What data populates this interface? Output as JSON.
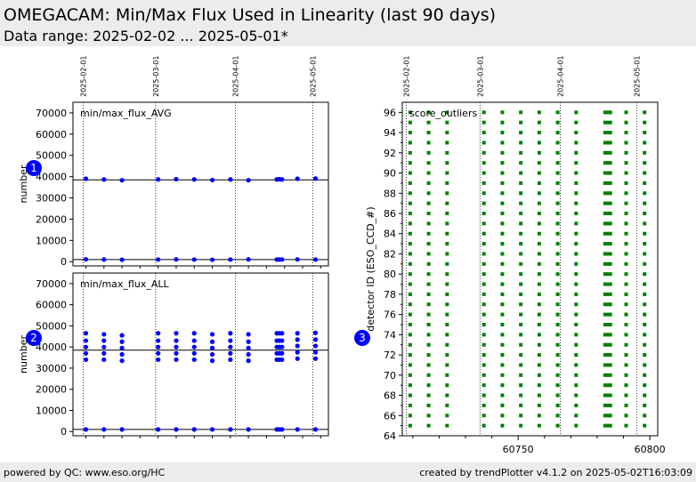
{
  "page": {
    "title": "OMEGACAM: Min/Max Flux Used in Linearity (last 90 days)",
    "subtitle": "Data range: 2025-02-02 ... 2025-05-01*",
    "footer_left": "powered by QC: www.eso.org/HC",
    "footer_right": "created by trendPlotter v4.1.2 on 2025-05-02T16:03:09"
  },
  "colors": {
    "header_bg": "#ececec",
    "data_blue": "#0000ff",
    "data_green": "#008000",
    "badge": "#0000ff"
  },
  "chart_data": [
    {
      "type": "scatter",
      "panel_label": "min/max_flux_AVG",
      "badge": "1",
      "ylabel": "number",
      "ylim": [
        -2000,
        75000
      ],
      "yticks": [
        0,
        10000,
        20000,
        30000,
        40000,
        50000,
        60000,
        70000
      ],
      "ytick_labels": [
        "0",
        "10000",
        "20000",
        "30000",
        "40000",
        "50000",
        "60000",
        "70000"
      ],
      "date_ticks": [
        "2025-02-01",
        "2025-03-01",
        "2025-04-01",
        "2025-05-01"
      ],
      "xlim": [
        "2025-01-28",
        "2025-05-07"
      ],
      "reference_lines": [
        1000,
        38500
      ],
      "series": [
        {
          "color": "#0000ff",
          "points": [
            [
              "2025-02-02",
              39000
            ],
            [
              "2025-02-09",
              38700
            ],
            [
              "2025-02-16",
              38300
            ],
            [
              "2025-03-02",
              38700
            ],
            [
              "2025-03-09",
              38800
            ],
            [
              "2025-03-16",
              38700
            ],
            [
              "2025-03-23",
              38400
            ],
            [
              "2025-03-30",
              38700
            ],
            [
              "2025-04-06",
              38300
            ],
            [
              "2025-04-17",
              38700
            ],
            [
              "2025-04-18",
              38800
            ],
            [
              "2025-04-19",
              38700
            ],
            [
              "2025-04-25",
              39000
            ],
            [
              "2025-05-02",
              39100
            ],
            [
              "2025-02-02",
              1100
            ],
            [
              "2025-02-09",
              1000
            ],
            [
              "2025-02-16",
              900
            ],
            [
              "2025-03-02",
              1000
            ],
            [
              "2025-03-09",
              1050
            ],
            [
              "2025-03-16",
              1000
            ],
            [
              "2025-03-23",
              900
            ],
            [
              "2025-03-30",
              1000
            ],
            [
              "2025-04-06",
              1050
            ],
            [
              "2025-04-17",
              1000
            ],
            [
              "2025-04-18",
              1000
            ],
            [
              "2025-04-19",
              1000
            ],
            [
              "2025-04-25",
              1050
            ],
            [
              "2025-05-02",
              1000
            ]
          ]
        }
      ]
    },
    {
      "type": "scatter",
      "panel_label": "min/max_flux_ALL",
      "badge": "2",
      "ylabel": "number",
      "ylim": [
        -2000,
        75000
      ],
      "yticks": [
        0,
        10000,
        20000,
        30000,
        40000,
        50000,
        60000,
        70000
      ],
      "ytick_labels": [
        "0",
        "10000",
        "20000",
        "30000",
        "40000",
        "50000",
        "60000",
        "70000"
      ],
      "date_ticks": [
        "2025-02-01",
        "2025-03-01",
        "2025-04-01",
        "2025-05-01"
      ],
      "xlim": [
        "2025-01-28",
        "2025-05-07"
      ],
      "reference_lines": [
        1000,
        38500
      ],
      "series": [
        {
          "color": "#0000ff",
          "points": [
            [
              "2025-02-02",
              34000
            ],
            [
              "2025-02-02",
              37000
            ],
            [
              "2025-02-02",
              40000
            ],
            [
              "2025-02-02",
              43000
            ],
            [
              "2025-02-02",
              46500
            ],
            [
              "2025-02-09",
              34000
            ],
            [
              "2025-02-09",
              37000
            ],
            [
              "2025-02-09",
              40000
            ],
            [
              "2025-02-09",
              43000
            ],
            [
              "2025-02-09",
              46000
            ],
            [
              "2025-02-16",
              33500
            ],
            [
              "2025-02-16",
              36500
            ],
            [
              "2025-02-16",
              39500
            ],
            [
              "2025-02-16",
              42500
            ],
            [
              "2025-02-16",
              45500
            ],
            [
              "2025-03-02",
              34000
            ],
            [
              "2025-03-02",
              37000
            ],
            [
              "2025-03-02",
              40000
            ],
            [
              "2025-03-02",
              43000
            ],
            [
              "2025-03-02",
              46500
            ],
            [
              "2025-03-09",
              34000
            ],
            [
              "2025-03-09",
              37000
            ],
            [
              "2025-03-09",
              40000
            ],
            [
              "2025-03-09",
              43000
            ],
            [
              "2025-03-09",
              46500
            ],
            [
              "2025-03-16",
              34000
            ],
            [
              "2025-03-16",
              37000
            ],
            [
              "2025-03-16",
              40000
            ],
            [
              "2025-03-16",
              43000
            ],
            [
              "2025-03-16",
              46500
            ],
            [
              "2025-03-23",
              33500
            ],
            [
              "2025-03-23",
              36500
            ],
            [
              "2025-03-23",
              39500
            ],
            [
              "2025-03-23",
              42500
            ],
            [
              "2025-03-23",
              46000
            ],
            [
              "2025-03-30",
              34000
            ],
            [
              "2025-03-30",
              37000
            ],
            [
              "2025-03-30",
              40000
            ],
            [
              "2025-03-30",
              43000
            ],
            [
              "2025-03-30",
              46500
            ],
            [
              "2025-04-06",
              33500
            ],
            [
              "2025-04-06",
              36500
            ],
            [
              "2025-04-06",
              39500
            ],
            [
              "2025-04-06",
              42500
            ],
            [
              "2025-04-06",
              46000
            ],
            [
              "2025-04-17",
              34000
            ],
            [
              "2025-04-17",
              37000
            ],
            [
              "2025-04-17",
              40000
            ],
            [
              "2025-04-17",
              43000
            ],
            [
              "2025-04-17",
              46500
            ],
            [
              "2025-04-18",
              34000
            ],
            [
              "2025-04-18",
              37000
            ],
            [
              "2025-04-18",
              40000
            ],
            [
              "2025-04-18",
              43000
            ],
            [
              "2025-04-18",
              46500
            ],
            [
              "2025-04-19",
              34000
            ],
            [
              "2025-04-19",
              37000
            ],
            [
              "2025-04-19",
              40000
            ],
            [
              "2025-04-19",
              43000
            ],
            [
              "2025-04-19",
              46500
            ],
            [
              "2025-04-25",
              34500
            ],
            [
              "2025-04-25",
              37500
            ],
            [
              "2025-04-25",
              40500
            ],
            [
              "2025-04-25",
              43500
            ],
            [
              "2025-04-25",
              46500
            ],
            [
              "2025-05-02",
              34500
            ],
            [
              "2025-05-02",
              37500
            ],
            [
              "2025-05-02",
              40500
            ],
            [
              "2025-05-02",
              43500
            ],
            [
              "2025-05-02",
              46700
            ],
            [
              "2025-02-02",
              1000
            ],
            [
              "2025-02-09",
              1000
            ],
            [
              "2025-02-16",
              1000
            ],
            [
              "2025-03-02",
              1000
            ],
            [
              "2025-03-09",
              1000
            ],
            [
              "2025-03-16",
              1000
            ],
            [
              "2025-03-23",
              1000
            ],
            [
              "2025-03-30",
              1000
            ],
            [
              "2025-04-06",
              1000
            ],
            [
              "2025-04-17",
              1000
            ],
            [
              "2025-04-18",
              1000
            ],
            [
              "2025-04-19",
              1000
            ],
            [
              "2025-04-25",
              1000
            ],
            [
              "2025-05-02",
              1000
            ]
          ]
        }
      ]
    },
    {
      "type": "scatter",
      "panel_label": "score_outliers",
      "badge": "3",
      "ylabel": "detector ID (ESO_CCD_#)",
      "ylim": [
        64,
        97
      ],
      "yticks": [
        64,
        66,
        68,
        70,
        72,
        74,
        76,
        78,
        80,
        82,
        84,
        86,
        88,
        90,
        92,
        94,
        96
      ],
      "ytick_labels": [
        "64",
        "66",
        "68",
        "70",
        "72",
        "74",
        "76",
        "78",
        "80",
        "82",
        "84",
        "86",
        "88",
        "90",
        "92",
        "94",
        "96"
      ],
      "xlabel": "",
      "xlim": [
        60706,
        60803
      ],
      "xticks": [
        60750,
        60800
      ],
      "xtick_labels": [
        "60750",
        "60800"
      ],
      "date_ticks": [
        "2025-02-01",
        "2025-03-01",
        "2025-04-01",
        "2025-05-01"
      ],
      "date_tick_mjd": [
        60707.5,
        60735.5,
        60766,
        60795
      ],
      "series": [
        {
          "color": "#008000",
          "marker": "square",
          "detector_range": [
            65,
            96
          ],
          "mjd": [
            60709,
            60716,
            60723,
            60737,
            60744,
            60751,
            60758,
            60765,
            60772,
            60783,
            60784,
            60785,
            60791,
            60798
          ]
        }
      ]
    }
  ]
}
